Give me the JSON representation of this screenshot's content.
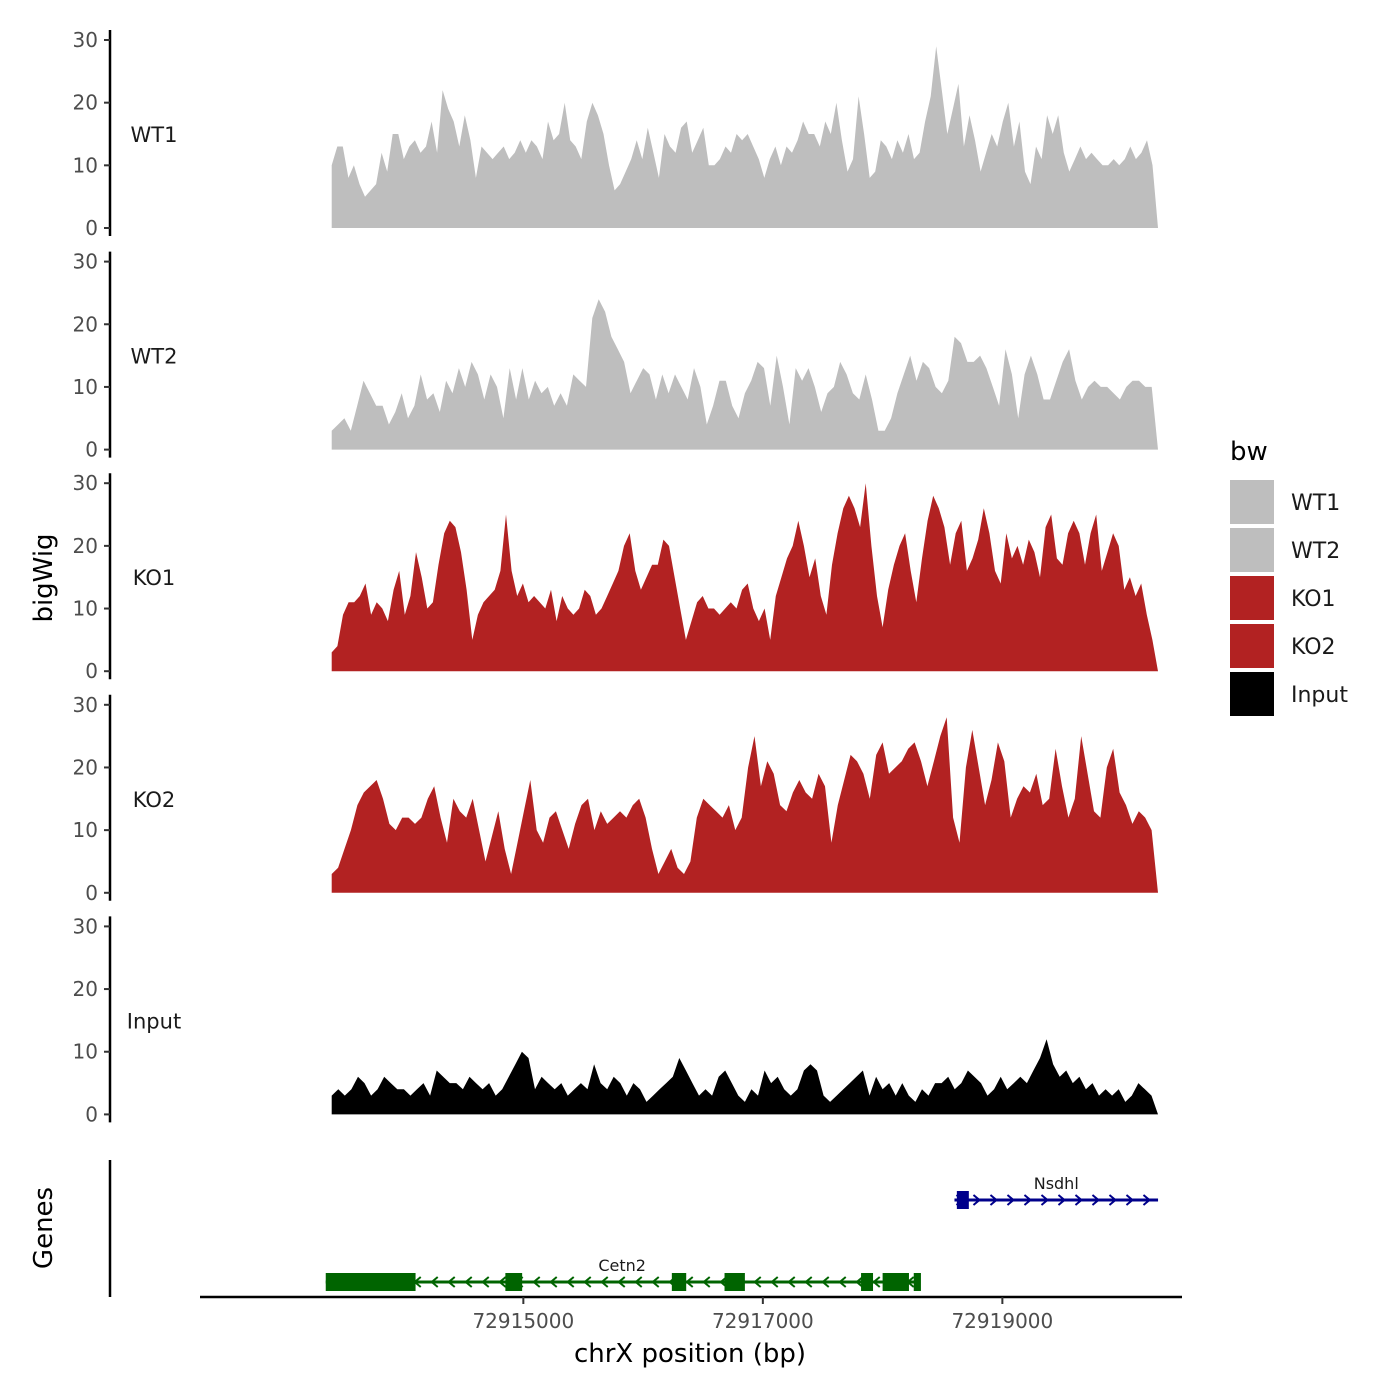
{
  "chart_data": {
    "type": "area",
    "ylabel": "bigWig",
    "xlabel": "chrX position (bp)",
    "x_ticks": [
      72915000,
      72917000,
      72919000
    ],
    "x_tick_labels": [
      "72915000",
      "72917000",
      "72919000"
    ],
    "xlim": [
      72912300,
      72920500
    ],
    "ylim": [
      0,
      30
    ],
    "y_ticks": [
      0,
      10,
      20,
      30
    ],
    "y_tick_labels": [
      "0",
      "10",
      "20",
      "30"
    ],
    "x_start": 72913400,
    "x_end": 72920300,
    "series": [
      {
        "name": "WT1",
        "color": "#BEBEBE",
        "values": [
          10,
          13,
          13,
          8,
          10,
          7,
          5,
          6,
          7,
          12,
          9,
          15,
          15,
          11,
          13,
          14,
          12,
          13,
          17,
          12,
          22,
          19,
          17,
          13,
          18,
          14,
          8,
          13,
          12,
          11,
          12,
          13,
          11,
          12,
          14,
          12,
          14,
          13,
          11,
          17,
          14,
          15,
          20,
          14,
          13,
          11,
          17,
          20,
          18,
          15,
          10,
          6,
          7,
          9,
          11,
          14,
          11,
          16,
          12,
          8,
          15,
          13,
          12,
          16,
          17,
          12,
          14,
          16,
          10,
          10,
          11,
          13,
          12,
          15,
          14,
          15,
          13,
          11,
          8,
          11,
          13,
          10,
          13,
          12,
          14,
          17,
          15,
          15,
          13,
          17,
          15,
          20,
          14,
          9,
          11,
          21,
          15,
          8,
          9,
          14,
          13,
          11,
          14,
          12,
          15,
          11,
          12,
          17,
          21,
          29,
          22,
          15,
          19,
          23,
          13,
          18,
          14,
          9,
          12,
          15,
          13,
          17,
          20,
          13,
          17,
          9,
          7,
          13,
          11,
          18,
          15,
          18,
          12,
          9,
          11,
          13,
          11,
          12,
          11,
          10,
          10,
          11,
          10,
          11,
          13,
          11,
          12,
          14,
          10,
          0
        ]
      },
      {
        "name": "WT2",
        "color": "#BEBEBE",
        "values": [
          3,
          4,
          5,
          3,
          7,
          11,
          9,
          7,
          7,
          4,
          6,
          9,
          5,
          7,
          12,
          8,
          9,
          6,
          11,
          9,
          13,
          10,
          14,
          12,
          8,
          12,
          10,
          5,
          13,
          8,
          13,
          8,
          11,
          9,
          10,
          7,
          9,
          7,
          12,
          11,
          10,
          21,
          24,
          22,
          18,
          16,
          14,
          9,
          11,
          13,
          12,
          8,
          12,
          9,
          12,
          10,
          8,
          13,
          10,
          4,
          7,
          11,
          11,
          7,
          5,
          9,
          11,
          14,
          13,
          7,
          15,
          10,
          4,
          13,
          11,
          13,
          10,
          6,
          9,
          10,
          14,
          12,
          9,
          8,
          12,
          8,
          3,
          3,
          5,
          9,
          12,
          15,
          11,
          14,
          13,
          10,
          9,
          11,
          18,
          17,
          14,
          14,
          15,
          13,
          10,
          7,
          16,
          12,
          5,
          12,
          15,
          12,
          8,
          8,
          11,
          14,
          16,
          11,
          8,
          10,
          11,
          10,
          10,
          9,
          8,
          10,
          11,
          11,
          10,
          10,
          0
        ]
      },
      {
        "name": "KO1",
        "color": "#B22222",
        "values": [
          3,
          4,
          9,
          11,
          11,
          12,
          14,
          9,
          11,
          10,
          8,
          13,
          16,
          9,
          12,
          19,
          15,
          10,
          11,
          17,
          22,
          24,
          23,
          19,
          13,
          5,
          9,
          11,
          12,
          13,
          16,
          25,
          16,
          12,
          14,
          11,
          12,
          11,
          10,
          13,
          8,
          12,
          10,
          9,
          10,
          13,
          12,
          9,
          10,
          12,
          14,
          16,
          20,
          22,
          16,
          13,
          15,
          17,
          17,
          21,
          20,
          15,
          10,
          5,
          8,
          11,
          12,
          10,
          10,
          9,
          10,
          11,
          10,
          13,
          14,
          10,
          8,
          10,
          5,
          12,
          15,
          18,
          20,
          24,
          20,
          15,
          18,
          12,
          9,
          17,
          22,
          26,
          28,
          26,
          23,
          30,
          20,
          12,
          7,
          13,
          17,
          20,
          22,
          16,
          11,
          18,
          24,
          28,
          26,
          23,
          17,
          22,
          24,
          16,
          18,
          21,
          26,
          22,
          16,
          14,
          22,
          18,
          20,
          17,
          21,
          19,
          15,
          23,
          25,
          18,
          17,
          22,
          24,
          22,
          17,
          22,
          25,
          16,
          19,
          22,
          20,
          13,
          15,
          12,
          14,
          9,
          5,
          0
        ]
      },
      {
        "name": "KO2",
        "color": "#B22222",
        "values": [
          3,
          4,
          7,
          10,
          14,
          16,
          17,
          18,
          15,
          11,
          10,
          12,
          12,
          11,
          12,
          15,
          17,
          12,
          8,
          15,
          13,
          12,
          15,
          10,
          5,
          9,
          13,
          7,
          3,
          8,
          13,
          18,
          10,
          8,
          12,
          13,
          10,
          7,
          11,
          14,
          15,
          10,
          13,
          11,
          12,
          13,
          12,
          14,
          15,
          12,
          7,
          3,
          5,
          7,
          4,
          3,
          5,
          12,
          15,
          14,
          13,
          12,
          14,
          10,
          12,
          20,
          25,
          17,
          21,
          19,
          14,
          13,
          16,
          18,
          16,
          15,
          19,
          17,
          8,
          14,
          18,
          22,
          21,
          19,
          15,
          22,
          24,
          19,
          20,
          21,
          23,
          24,
          21,
          17,
          21,
          25,
          28,
          12,
          8,
          20,
          26,
          20,
          14,
          18,
          24,
          21,
          12,
          15,
          17,
          16,
          19,
          14,
          15,
          23,
          17,
          12,
          15,
          25,
          19,
          13,
          12,
          20,
          23,
          16,
          14,
          11,
          13,
          12,
          10,
          0
        ]
      },
      {
        "name": "Input",
        "color": "#000000",
        "values": [
          3,
          4,
          3,
          4,
          6,
          5,
          3,
          4,
          6,
          5,
          4,
          4,
          3,
          4,
          5,
          3,
          7,
          6,
          5,
          5,
          4,
          6,
          5,
          4,
          5,
          3,
          4,
          6,
          8,
          10,
          9,
          4,
          6,
          5,
          4,
          5,
          3,
          4,
          5,
          4,
          8,
          5,
          4,
          6,
          5,
          3,
          5,
          4,
          2,
          3,
          4,
          5,
          6,
          9,
          7,
          5,
          3,
          4,
          3,
          6,
          7,
          5,
          3,
          2,
          4,
          3,
          7,
          5,
          6,
          4,
          3,
          4,
          7,
          8,
          7,
          3,
          2,
          3,
          4,
          5,
          6,
          7,
          3,
          6,
          4,
          5,
          3,
          5,
          3,
          2,
          4,
          3,
          5,
          5,
          6,
          4,
          5,
          7,
          6,
          5,
          3,
          4,
          6,
          4,
          5,
          6,
          5,
          7,
          9,
          12,
          8,
          6,
          7,
          5,
          6,
          4,
          5,
          3,
          4,
          3,
          4,
          2,
          3,
          5,
          4,
          3,
          0
        ]
      }
    ],
    "tracks": [
      {
        "label": "WT1",
        "series": "WT1"
      },
      {
        "label": "WT2",
        "series": "WT2"
      },
      {
        "label": "KO1",
        "series": "KO1"
      },
      {
        "label": "KO2",
        "series": "KO2"
      },
      {
        "label": "Input",
        "series": "Input"
      }
    ],
    "legend": {
      "title": "bw",
      "position": "right",
      "entries": [
        {
          "label": "WT1",
          "color": "#BEBEBE"
        },
        {
          "label": "WT2",
          "color": "#BEBEBE"
        },
        {
          "label": "KO1",
          "color": "#B22222"
        },
        {
          "label": "KO2",
          "color": "#B22222"
        },
        {
          "label": "Input",
          "color": "#000000"
        }
      ]
    },
    "genes_label": "Genes",
    "genes": [
      {
        "name": "Nsdhl",
        "strand": "+",
        "color": "#00008B",
        "start": 72918600,
        "end": 72920300,
        "exons": [
          [
            72918620,
            72918720
          ]
        ]
      },
      {
        "name": "Cetn2",
        "strand": "-",
        "color": "#006400",
        "start": 72913350,
        "end": 72918300,
        "exons": [
          [
            72913350,
            72914100
          ],
          [
            72914850,
            72914990
          ],
          [
            72916240,
            72916360
          ],
          [
            72916680,
            72916850
          ],
          [
            72917820,
            72917920
          ],
          [
            72918000,
            72918220
          ],
          [
            72918260,
            72918320
          ]
        ]
      }
    ]
  }
}
